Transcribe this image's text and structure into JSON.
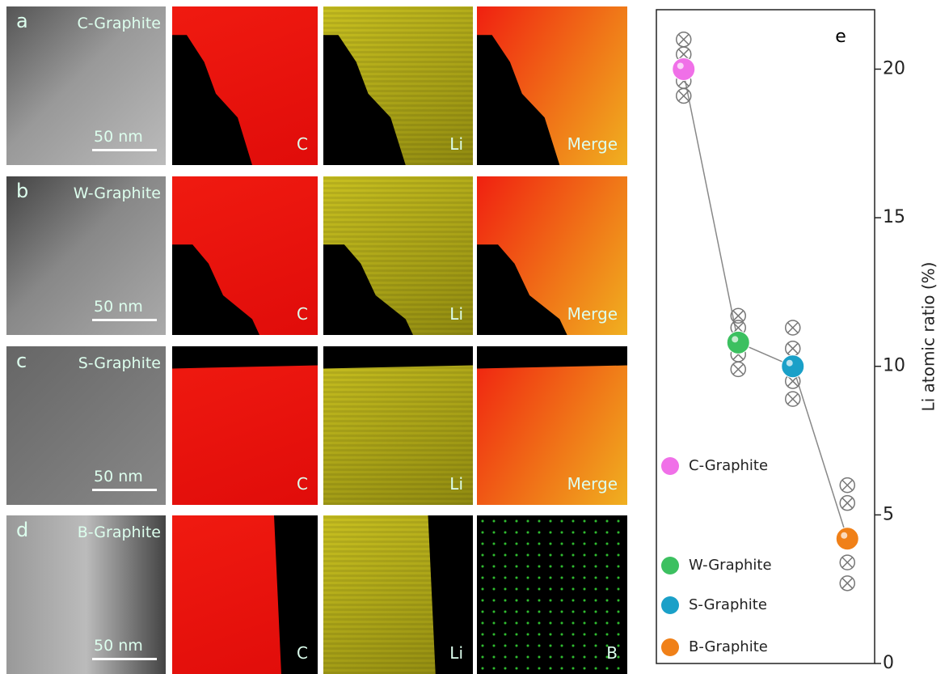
{
  "panels": [
    {
      "letter": "a",
      "sample": "C-Graphite",
      "scale": "50 nm",
      "maps": [
        "C",
        "Li",
        "Merge"
      ]
    },
    {
      "letter": "b",
      "sample": "W-Graphite",
      "scale": "50 nm",
      "maps": [
        "C",
        "Li",
        "Merge"
      ]
    },
    {
      "letter": "c",
      "sample": "S-Graphite",
      "scale": "50 nm",
      "maps": [
        "C",
        "Li",
        "Merge"
      ]
    },
    {
      "letter": "d",
      "sample": "B-Graphite",
      "scale": "50 nm",
      "maps": [
        "C",
        "Li",
        "B"
      ]
    }
  ],
  "chart_data": {
    "type": "scatter",
    "panel_label": "e",
    "ylabel": "Li atomic ratio (%)",
    "categories": [
      null,
      null,
      null,
      null
    ],
    "ylim": [
      0,
      22
    ],
    "yticks": [
      0,
      5,
      10,
      15,
      20
    ],
    "series": [
      {
        "name": "C-Graphite",
        "color": "#f070e8",
        "values": [
          20.0,
          null,
          null,
          null
        ],
        "measurements": [
          21.0,
          20.5,
          19.6,
          19.1
        ]
      },
      {
        "name": "W-Graphite",
        "color": "#3cc060",
        "values": [
          null,
          10.8,
          null,
          null
        ],
        "measurements": [
          11.7,
          11.3,
          10.4,
          9.9
        ]
      },
      {
        "name": "S-Graphite",
        "color": "#1aa0c8",
        "values": [
          null,
          null,
          10.0,
          null
        ],
        "measurements": [
          11.3,
          10.6,
          9.5,
          8.9
        ]
      },
      {
        "name": "B-Graphite",
        "color": "#f08018",
        "values": [
          null,
          null,
          null,
          4.2
        ],
        "measurements": [
          6.0,
          5.4,
          3.4,
          2.7
        ]
      }
    ]
  }
}
